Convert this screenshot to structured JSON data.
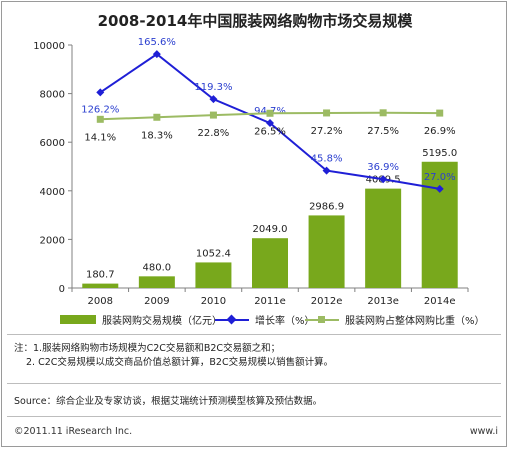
{
  "chart_data": {
    "type": "bar",
    "title": "2008-2014年中国服装网络购物市场交易规模",
    "categories": [
      "2008",
      "2009",
      "2010",
      "2011e",
      "2012e",
      "2013e",
      "2014e"
    ],
    "series": [
      {
        "name": "服装网购交易规模（亿元）",
        "type": "bar",
        "axis": "left",
        "values": [
          180.7,
          480.0,
          1052.4,
          2049.0,
          2986.9,
          4089.5,
          5195.0
        ],
        "labels": [
          "180.7",
          "480.0",
          "1052.4",
          "2049.0",
          "2986.9",
          "4089.5",
          "5195.0"
        ]
      },
      {
        "name": "增长率（%）",
        "type": "line",
        "values": [
          126.2,
          165.6,
          119.3,
          94.7,
          45.8,
          36.9,
          27.0
        ],
        "labels": [
          "126.2%",
          "165.6%",
          "119.3%",
          "94.7%",
          "45.8%",
          "36.9%",
          "27.0%"
        ]
      },
      {
        "name": "服装网购占整体网购比重（%）",
        "type": "line",
        "values": [
          14.1,
          18.3,
          22.8,
          26.5,
          27.2,
          27.5,
          26.9
        ],
        "labels": [
          "14.1%",
          "18.3%",
          "22.8%",
          "26.5%",
          "27.2%",
          "27.5%",
          "26.9%"
        ]
      }
    ],
    "yticks": [
      "0",
      "2000",
      "4000",
      "6000",
      "8000",
      "10000"
    ],
    "ylim": [
      0,
      10000
    ],
    "grid": false,
    "legend_position": "bottom"
  },
  "colors": {
    "bar": "#78a81c",
    "growth_line": "#1f1fd6",
    "growth_label": "#2b3fcf",
    "share_line": "#9cbb63",
    "axis": "#808080"
  },
  "notes": {
    "line1": "注：1.服装网络购物市场规模为C2C交易额和B2C交易额之和；",
    "line2": "2. C2C交易规模以成交商品价值总额计算，B2C交易规模以销售额计算。"
  },
  "source": "Source：综合企业及专家访谈，根据艾瑞统计预测模型核算及预估数据。",
  "footer": {
    "copyright": "©2011.11 iResearch Inc.",
    "url": "www.i"
  }
}
